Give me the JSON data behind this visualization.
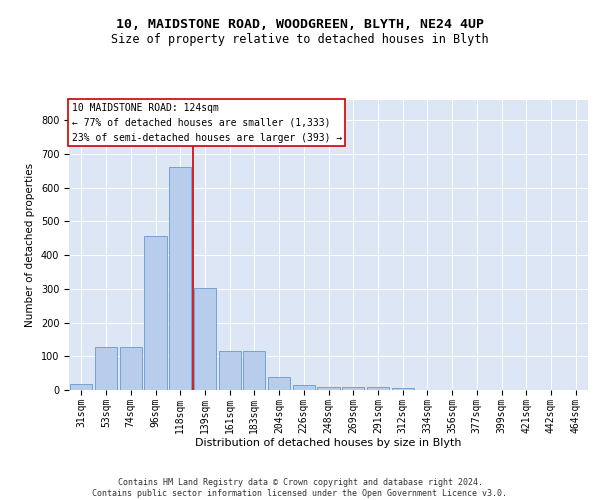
{
  "title1": "10, MAIDSTONE ROAD, WOODGREEN, BLYTH, NE24 4UP",
  "title2": "Size of property relative to detached houses in Blyth",
  "xlabel": "Distribution of detached houses by size in Blyth",
  "ylabel": "Number of detached properties",
  "categories": [
    "31sqm",
    "53sqm",
    "74sqm",
    "96sqm",
    "118sqm",
    "139sqm",
    "161sqm",
    "183sqm",
    "204sqm",
    "226sqm",
    "248sqm",
    "269sqm",
    "291sqm",
    "312sqm",
    "334sqm",
    "356sqm",
    "377sqm",
    "399sqm",
    "421sqm",
    "442sqm",
    "464sqm"
  ],
  "values": [
    18,
    128,
    128,
    457,
    660,
    302,
    117,
    117,
    38,
    14,
    10,
    10,
    10,
    6,
    0,
    0,
    0,
    0,
    0,
    0,
    0
  ],
  "bar_color": "#b8cceb",
  "bar_edge_color": "#6699cc",
  "bar_linewidth": 0.6,
  "vline_x": 4.5,
  "vline_color": "#cc0000",
  "vline_linewidth": 1.2,
  "annotation_text": "10 MAIDSTONE ROAD: 124sqm\n← 77% of detached houses are smaller (1,333)\n23% of semi-detached houses are larger (393) →",
  "annotation_box_color": "#ffffff",
  "annotation_box_edge": "#cc0000",
  "ylim": [
    0,
    860
  ],
  "yticks": [
    0,
    100,
    200,
    300,
    400,
    500,
    600,
    700,
    800
  ],
  "bg_color": "#dce6f5",
  "footnote": "Contains HM Land Registry data © Crown copyright and database right 2024.\nContains public sector information licensed under the Open Government Licence v3.0.",
  "title1_fontsize": 9.5,
  "title2_fontsize": 8.5,
  "xlabel_fontsize": 8,
  "ylabel_fontsize": 7.5,
  "tick_fontsize": 7,
  "annotation_fontsize": 7,
  "footnote_fontsize": 6
}
